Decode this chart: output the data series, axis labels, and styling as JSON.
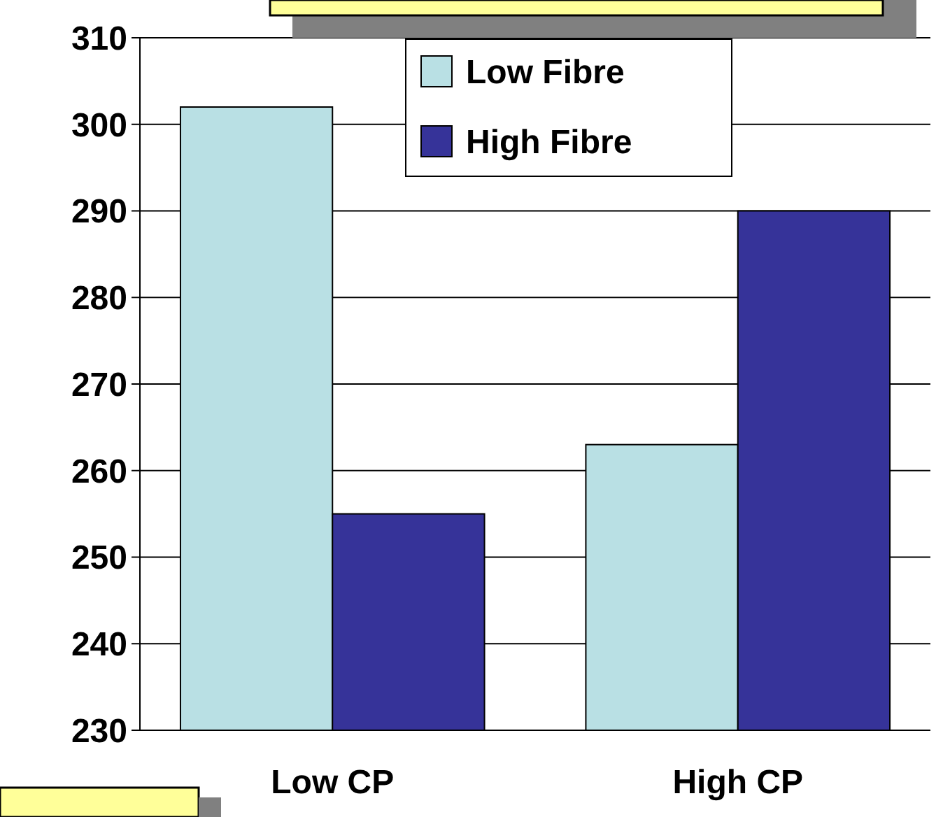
{
  "chart_data": {
    "type": "bar",
    "categories": [
      "Low CP",
      "High CP"
    ],
    "series": [
      {
        "name": "Low Fibre",
        "color": "#b9e0e4",
        "values": [
          302,
          263
        ]
      },
      {
        "name": "High Fibre",
        "color": "#363399",
        "values": [
          255,
          290
        ]
      }
    ],
    "ylim": [
      230,
      310
    ],
    "yticks": [
      230,
      240,
      250,
      260,
      270,
      280,
      290,
      300,
      310
    ],
    "grid": "y",
    "legend": "top"
  }
}
